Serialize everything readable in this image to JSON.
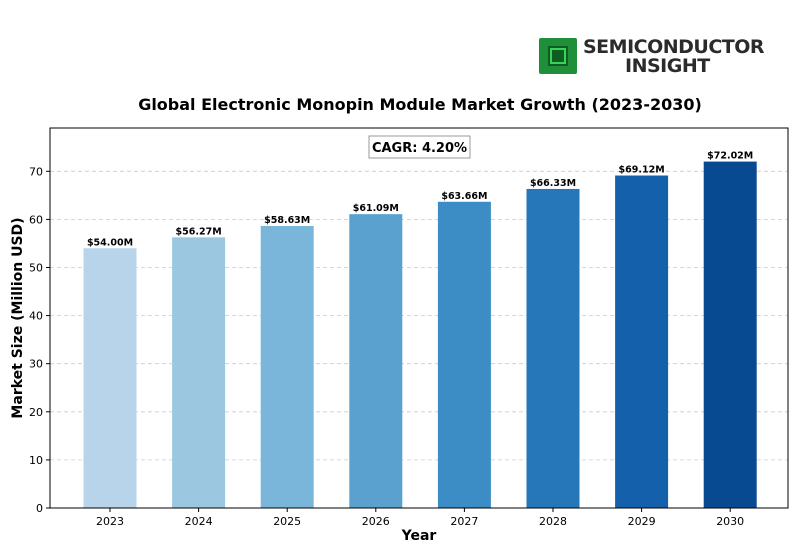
{
  "logo": {
    "line1": "SEMICONDUCTOR",
    "line2": "INSIGHT",
    "icon": "chip-icon"
  },
  "chart_data": {
    "type": "bar",
    "title": "Global Electronic Monopin Module Market Growth (2023-2030)",
    "xlabel": "Year",
    "ylabel": "Market Size (Million USD)",
    "annotation": "CAGR: 4.20%",
    "categories": [
      "2023",
      "2024",
      "2025",
      "2026",
      "2027",
      "2028",
      "2029",
      "2030"
    ],
    "values": [
      54.0,
      56.27,
      58.63,
      61.09,
      63.66,
      66.33,
      69.12,
      72.02
    ],
    "data_labels": [
      "$54.00M",
      "$56.27M",
      "$58.63M",
      "$61.09M",
      "$63.66M",
      "$66.33M",
      "$69.12M",
      "$72.02M"
    ],
    "ylim": [
      0,
      79
    ],
    "yticks": [
      0,
      10,
      20,
      30,
      40,
      50,
      60,
      70
    ],
    "grid": true,
    "colors": [
      "#b8d4ea",
      "#9bc7e0",
      "#79b6d9",
      "#5aa1cf",
      "#3c8dc5",
      "#2676ba",
      "#1460aa",
      "#084a91"
    ]
  }
}
